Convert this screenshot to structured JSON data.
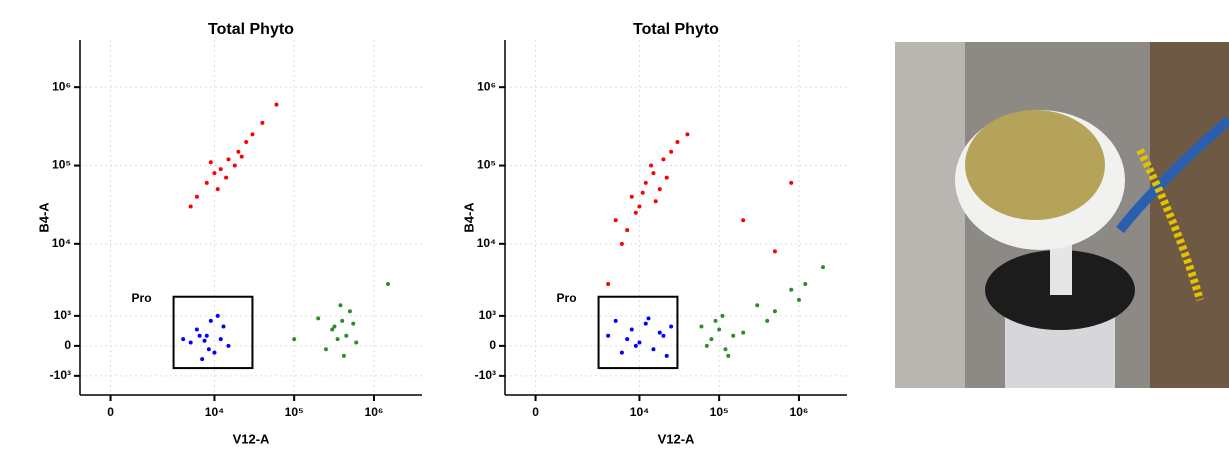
{
  "chart_data": [
    {
      "type": "scatter",
      "title": "Total Phyto",
      "xlabel": "V12-A",
      "ylabel": "B4-A",
      "xscale": "biexponential",
      "yscale": "biexponential",
      "grid": true,
      "xlim": [
        -1000,
        4000000
      ],
      "ylim": [
        -2000,
        4000000
      ],
      "xticks": [
        0,
        {
          "value": 10000,
          "label": "10⁴"
        },
        {
          "value": 100000,
          "label": "10⁵"
        },
        {
          "value": 1000000,
          "label": "10⁶"
        }
      ],
      "yticks": [
        {
          "value": -1000,
          "label": "-10³"
        },
        0,
        {
          "value": 1000,
          "label": "10³"
        },
        {
          "value": 10000,
          "label": "10⁴"
        },
        {
          "value": 100000,
          "label": "10⁵"
        },
        {
          "value": 1000000,
          "label": "10⁶"
        }
      ],
      "gate": {
        "label": "Pro",
        "xrange": [
          3000,
          30000
        ],
        "yrange": [
          -700,
          2000
        ]
      },
      "series": [
        {
          "color": "#ff0000",
          "x": [
            8000,
            12000,
            15000,
            20000,
            10000,
            25000,
            6000,
            18000,
            30000,
            14000,
            9000,
            40000,
            5000,
            22000,
            60000,
            11000
          ],
          "values": [
            60000,
            90000,
            120000,
            150000,
            80000,
            200000,
            40000,
            100000,
            250000,
            70000,
            110000,
            350000,
            30000,
            130000,
            600000,
            50000
          ]
        },
        {
          "color": "#2e8b2e",
          "x": [
            300000,
            400000,
            350000,
            500000,
            250000,
            450000,
            380000,
            320000,
            600000,
            420000,
            200000,
            1500000,
            100000,
            550000
          ],
          "values": [
            500,
            800,
            200,
            1200,
            -100,
            300,
            1500,
            600,
            100,
            -300,
            900,
            3000,
            200,
            700
          ]
        },
        {
          "color": "#0000ff",
          "x": [
            5000,
            8000,
            10000,
            6000,
            12000,
            7000,
            9000,
            15000,
            4000,
            11000,
            8500,
            6500,
            13000,
            7500
          ],
          "values": [
            100,
            300,
            -200,
            500,
            200,
            -400,
            800,
            0,
            200,
            1000,
            -100,
            300,
            600,
            150
          ]
        }
      ]
    },
    {
      "type": "scatter",
      "title": "Total Phyto",
      "xlabel": "V12-A",
      "ylabel": "B4-A",
      "xscale": "biexponential",
      "yscale": "biexponential",
      "grid": true,
      "xlim": [
        -1000,
        4000000
      ],
      "ylim": [
        -2000,
        4000000
      ],
      "xticks": [
        0,
        {
          "value": 10000,
          "label": "10⁴"
        },
        {
          "value": 100000,
          "label": "10⁵"
        },
        {
          "value": 1000000,
          "label": "10⁶"
        }
      ],
      "yticks": [
        {
          "value": -1000,
          "label": "-10³"
        },
        0,
        {
          "value": 1000,
          "label": "10³"
        },
        {
          "value": 10000,
          "label": "10⁴"
        },
        {
          "value": 100000,
          "label": "10⁵"
        },
        {
          "value": 1000000,
          "label": "10⁶"
        }
      ],
      "gate": {
        "label": "Pro",
        "xrange": [
          3000,
          30000
        ],
        "yrange": [
          -700,
          2000
        ]
      },
      "series": [
        {
          "color": "#ff0000",
          "x": [
            5000,
            8000,
            12000,
            15000,
            10000,
            20000,
            25000,
            6000,
            4000,
            18000,
            30000,
            14000,
            9000,
            7000,
            11000,
            22000,
            40000,
            16000,
            200000,
            800000,
            500000
          ],
          "values": [
            20000,
            40000,
            60000,
            80000,
            30000,
            120000,
            150000,
            10000,
            3000,
            50000,
            200000,
            100000,
            25000,
            15000,
            45000,
            70000,
            250000,
            35000,
            20000,
            60000,
            8000
          ]
        },
        {
          "color": "#2e8b2e",
          "x": [
            80000,
            100000,
            120000,
            90000,
            150000,
            70000,
            110000,
            200000,
            300000,
            500000,
            800000,
            1200000,
            60000,
            130000,
            400000,
            2000000,
            1000000
          ],
          "values": [
            200,
            500,
            -100,
            800,
            300,
            0,
            1000,
            400,
            1500,
            1200,
            2500,
            3000,
            600,
            -300,
            800,
            5000,
            1800
          ]
        },
        {
          "color": "#0000ff",
          "x": [
            4000,
            6000,
            8000,
            10000,
            12000,
            15000,
            20000,
            25000,
            5000,
            9000,
            18000,
            7000,
            13000,
            22000
          ],
          "values": [
            300,
            -200,
            500,
            100,
            700,
            -100,
            300,
            600,
            800,
            0,
            400,
            200,
            900,
            -300
          ]
        }
      ]
    }
  ]
}
